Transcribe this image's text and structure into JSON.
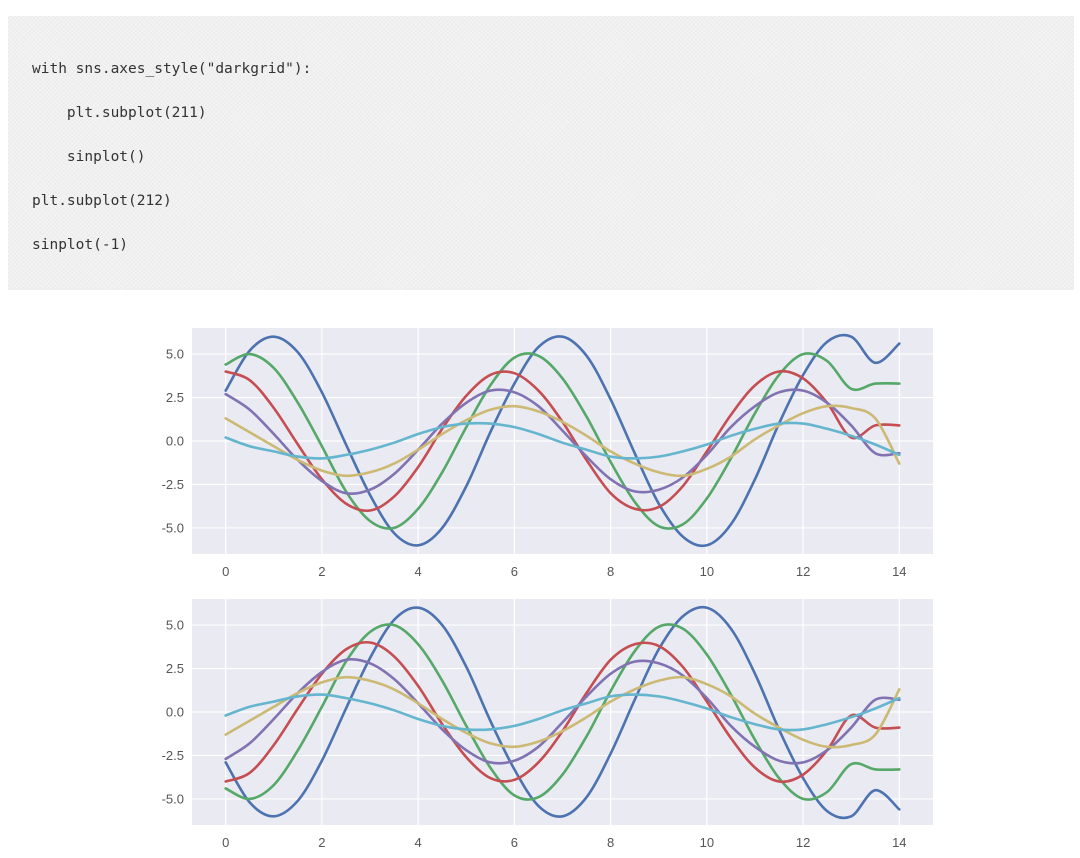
{
  "code": {
    "lines": [
      "with sns.axes_style(\"darkgrid\"):",
      "    plt.subplot(211)",
      "    sinplot()",
      "plt.subplot(212)",
      "sinplot(-1)"
    ]
  },
  "style": {
    "axes_facecolor": "#eaeaf2",
    "grid_color": "#ffffff",
    "series_colors": [
      "#4c72b0",
      "#55a868",
      "#c44e52",
      "#8172b2",
      "#ccb974",
      "#64b5cd"
    ]
  },
  "chart_data": [
    {
      "type": "line",
      "title": "",
      "xlabel": "",
      "ylabel": "",
      "xlim": [
        -0.7,
        14.7
      ],
      "ylim": [
        -6.5,
        6.5
      ],
      "xticks": [
        0,
        2,
        4,
        6,
        8,
        10,
        12,
        14
      ],
      "xtick_labels": [
        "0",
        "2",
        "4",
        "6",
        "8",
        "10",
        "12",
        "14"
      ],
      "yticks": [
        5.0,
        2.5,
        0.0,
        -2.5,
        -5.0
      ],
      "ytick_labels": [
        "5.0",
        "2.5",
        "0.0",
        "-2.5",
        "-5.0"
      ],
      "grid": true,
      "legend": "none",
      "x": [
        0,
        0.5,
        1,
        1.5,
        2,
        2.5,
        3,
        3.5,
        4,
        4.5,
        5,
        5.5,
        6,
        6.5,
        7,
        7.5,
        8,
        8.5,
        9,
        9.5,
        10,
        10.5,
        11,
        11.5,
        12,
        12.5,
        13,
        13.5,
        14
      ],
      "series": [
        {
          "values": [
            2.9,
            5.2,
            6.0,
            5.1,
            2.8,
            -0.2,
            -3.1,
            -5.3,
            -6.0,
            -5.0,
            -2.6,
            0.5,
            3.3,
            5.4,
            6.0,
            4.9,
            2.4,
            -0.7,
            -3.6,
            -5.5,
            -6.0,
            -4.8,
            -2.2,
            1.0,
            3.8,
            5.7,
            6.0,
            4.5,
            5.6
          ]
        },
        {
          "values": [
            4.4,
            5.0,
            4.2,
            2.2,
            -0.3,
            -2.9,
            -4.6,
            -5.0,
            -3.9,
            -1.8,
            0.8,
            3.2,
            4.8,
            4.9,
            3.6,
            1.4,
            -1.2,
            -3.5,
            -4.9,
            -4.8,
            -3.3,
            -1.0,
            1.6,
            3.8,
            5.0,
            4.6,
            3.0,
            3.3,
            3.3
          ]
        },
        {
          "values": [
            4.0,
            3.5,
            1.9,
            -0.2,
            -2.2,
            -3.6,
            -4.0,
            -3.2,
            -1.5,
            0.7,
            2.6,
            3.8,
            3.9,
            2.9,
            1.1,
            -1.1,
            -3.0,
            -3.9,
            -3.8,
            -2.6,
            -0.6,
            1.5,
            3.2,
            4.0,
            3.6,
            2.2,
            0.2,
            0.9,
            0.9
          ]
        },
        {
          "values": [
            2.7,
            1.8,
            0.4,
            -1.1,
            -2.3,
            -3.0,
            -2.8,
            -1.9,
            -0.5,
            1.0,
            2.2,
            2.9,
            2.8,
            2.0,
            0.6,
            -0.9,
            -2.2,
            -2.9,
            -2.8,
            -2.1,
            -0.8,
            0.8,
            2.0,
            2.8,
            2.9,
            2.2,
            0.9,
            -0.7,
            -0.7
          ]
        },
        {
          "values": [
            1.3,
            0.5,
            -0.3,
            -1.1,
            -1.7,
            -2.0,
            -1.8,
            -1.3,
            -0.5,
            0.4,
            1.2,
            1.8,
            2.0,
            1.7,
            1.1,
            0.3,
            -0.6,
            -1.3,
            -1.8,
            -2.0,
            -1.6,
            -0.9,
            0.1,
            0.9,
            1.6,
            2.0,
            1.9,
            1.3,
            -1.3
          ]
        },
        {
          "values": [
            0.2,
            -0.3,
            -0.6,
            -0.9,
            -1.0,
            -0.8,
            -0.5,
            -0.1,
            0.4,
            0.8,
            1.0,
            1.0,
            0.8,
            0.4,
            -0.1,
            -0.5,
            -0.9,
            -1.0,
            -0.9,
            -0.6,
            -0.2,
            0.3,
            0.7,
            1.0,
            1.0,
            0.7,
            0.3,
            -0.2,
            -0.8
          ]
        }
      ]
    },
    {
      "type": "line",
      "title": "",
      "xlabel": "",
      "ylabel": "",
      "xlim": [
        -0.7,
        14.7
      ],
      "ylim": [
        -6.5,
        6.5
      ],
      "xticks": [
        0,
        2,
        4,
        6,
        8,
        10,
        12,
        14
      ],
      "xtick_labels": [
        "0",
        "2",
        "4",
        "6",
        "8",
        "10",
        "12",
        "14"
      ],
      "yticks": [
        5.0,
        2.5,
        0.0,
        -2.5,
        -5.0
      ],
      "ytick_labels": [
        "5.0",
        "2.5",
        "0.0",
        "-2.5",
        "-5.0"
      ],
      "grid": true,
      "legend": "none",
      "x": [
        0,
        0.5,
        1,
        1.5,
        2,
        2.5,
        3,
        3.5,
        4,
        4.5,
        5,
        5.5,
        6,
        6.5,
        7,
        7.5,
        8,
        8.5,
        9,
        9.5,
        10,
        10.5,
        11,
        11.5,
        12,
        12.5,
        13,
        13.5,
        14
      ],
      "series": [
        {
          "values": [
            -2.9,
            -5.2,
            -6.0,
            -5.1,
            -2.8,
            0.2,
            3.1,
            5.3,
            6.0,
            5.0,
            2.6,
            -0.5,
            -3.3,
            -5.4,
            -6.0,
            -4.9,
            -2.4,
            0.7,
            3.6,
            5.5,
            6.0,
            4.8,
            2.2,
            -1.0,
            -3.8,
            -5.7,
            -6.0,
            -4.5,
            -5.6
          ]
        },
        {
          "values": [
            -4.4,
            -5.0,
            -4.2,
            -2.2,
            0.3,
            2.9,
            4.6,
            5.0,
            3.9,
            1.8,
            -0.8,
            -3.2,
            -4.8,
            -4.9,
            -3.6,
            -1.4,
            1.2,
            3.5,
            4.9,
            4.8,
            3.3,
            1.0,
            -1.6,
            -3.8,
            -5.0,
            -4.6,
            -3.0,
            -3.3,
            -3.3
          ]
        },
        {
          "values": [
            -4.0,
            -3.5,
            -1.9,
            0.2,
            2.2,
            3.6,
            4.0,
            3.2,
            1.5,
            -0.7,
            -2.6,
            -3.8,
            -3.9,
            -2.9,
            -1.1,
            1.1,
            3.0,
            3.9,
            3.8,
            2.6,
            0.6,
            -1.5,
            -3.2,
            -4.0,
            -3.6,
            -2.2,
            -0.2,
            -0.9,
            -0.9
          ]
        },
        {
          "values": [
            -2.7,
            -1.8,
            -0.4,
            1.1,
            2.3,
            3.0,
            2.8,
            1.9,
            0.5,
            -1.0,
            -2.2,
            -2.9,
            -2.8,
            -2.0,
            -0.6,
            0.9,
            2.2,
            2.9,
            2.8,
            2.1,
            0.8,
            -0.8,
            -2.0,
            -2.8,
            -2.9,
            -2.2,
            -0.9,
            0.7,
            0.7
          ]
        },
        {
          "values": [
            -1.3,
            -0.5,
            0.3,
            1.1,
            1.7,
            2.0,
            1.8,
            1.3,
            0.5,
            -0.4,
            -1.2,
            -1.8,
            -2.0,
            -1.7,
            -1.1,
            -0.3,
            0.6,
            1.3,
            1.8,
            2.0,
            1.6,
            0.9,
            -0.1,
            -0.9,
            -1.6,
            -2.0,
            -1.9,
            -1.3,
            1.3
          ]
        },
        {
          "values": [
            -0.2,
            0.3,
            0.6,
            0.9,
            1.0,
            0.8,
            0.5,
            0.1,
            -0.4,
            -0.8,
            -1.0,
            -1.0,
            -0.8,
            -0.4,
            0.1,
            0.5,
            0.9,
            1.0,
            0.9,
            0.6,
            0.2,
            -0.3,
            -0.7,
            -1.0,
            -1.0,
            -0.7,
            -0.3,
            0.2,
            0.8
          ]
        }
      ]
    }
  ]
}
